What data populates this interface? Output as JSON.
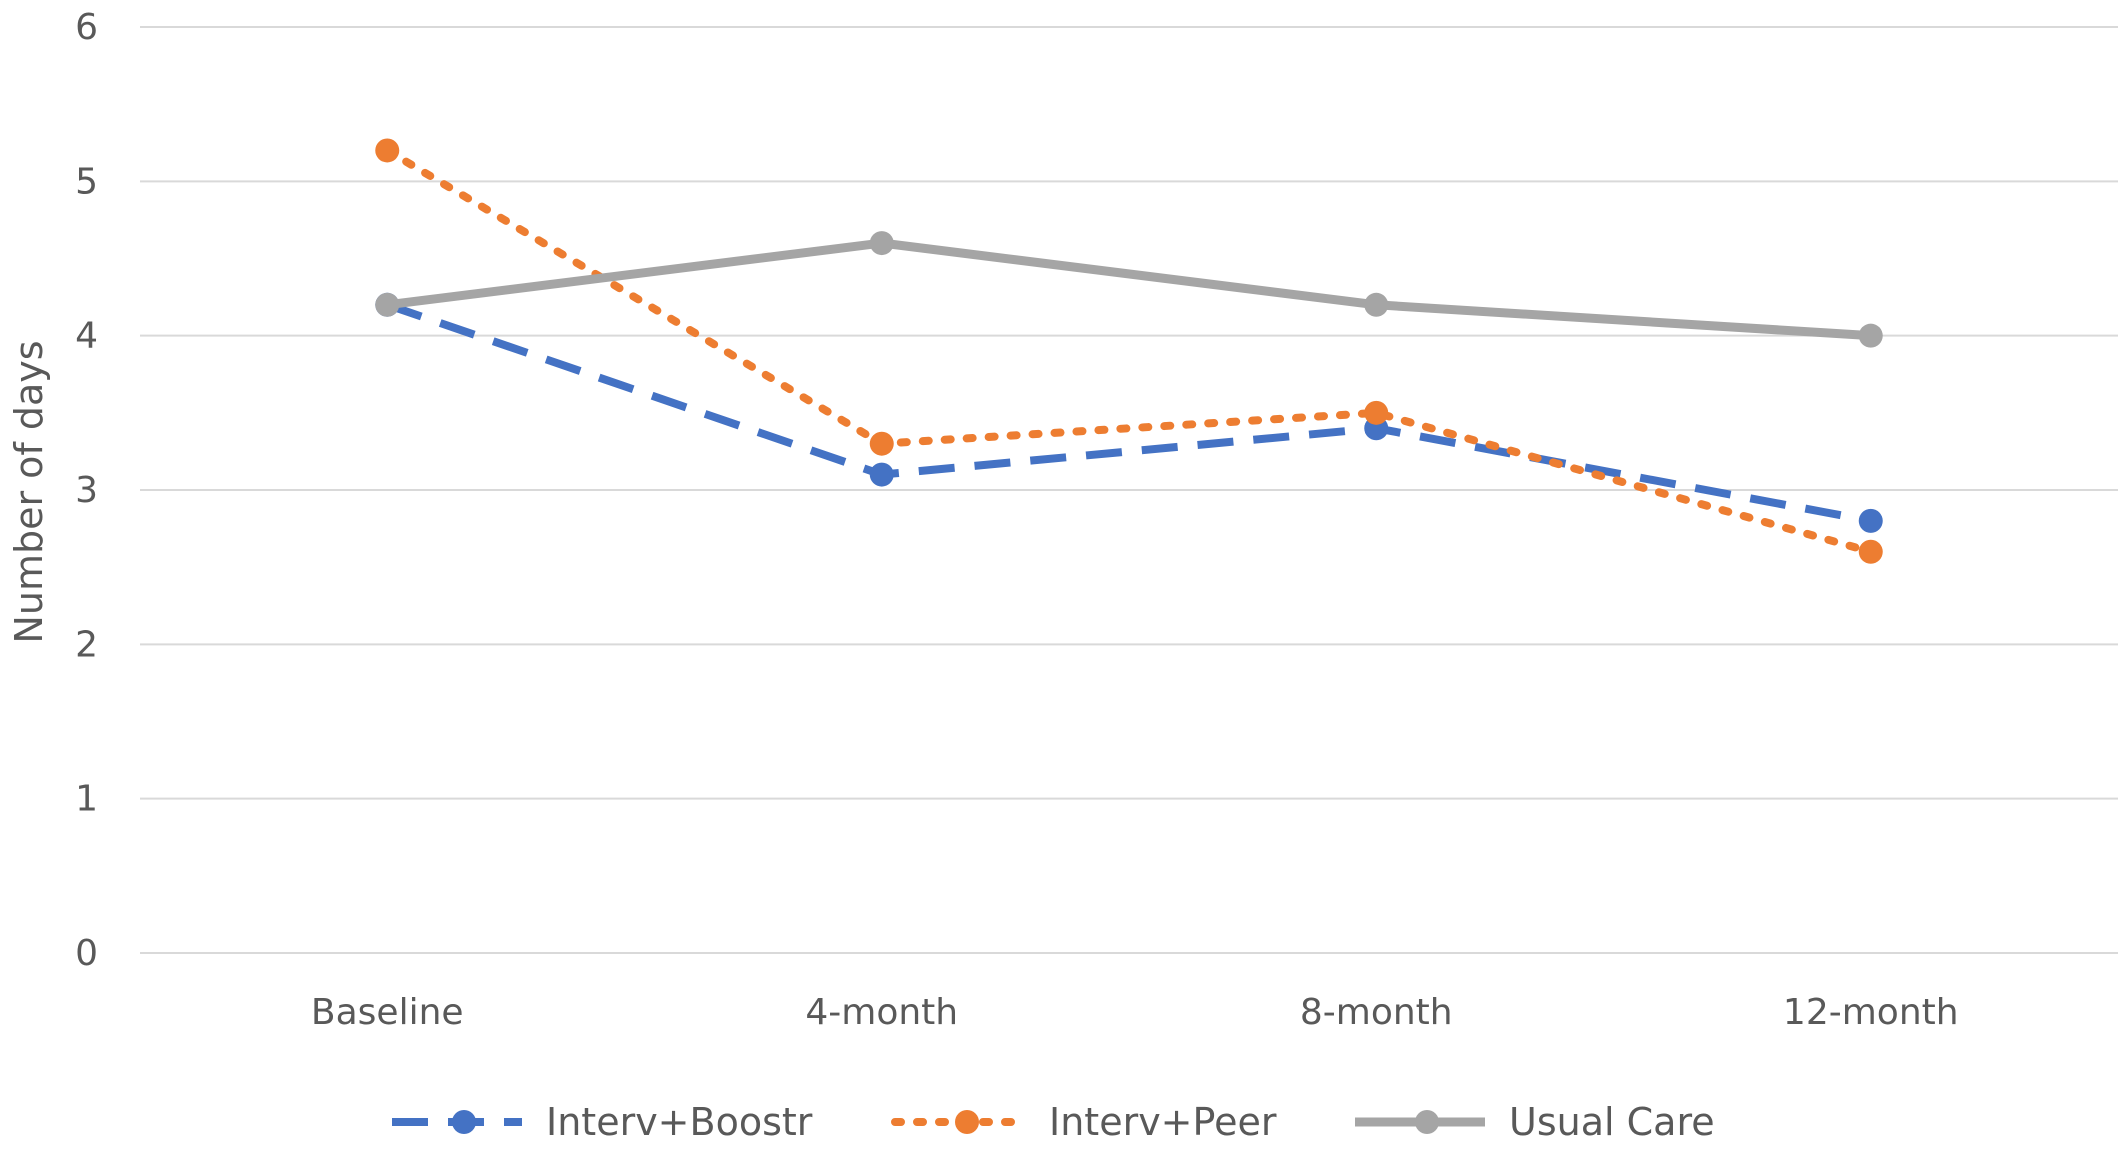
{
  "chart_data": {
    "type": "line",
    "title": "",
    "xlabel": "",
    "ylabel": "Number  of days",
    "categories": [
      "Baseline",
      "4-month",
      "8-month",
      "12-month"
    ],
    "ylim": [
      0,
      6
    ],
    "yticks": [
      0,
      1,
      2,
      3,
      4,
      5,
      6
    ],
    "grid": true,
    "legend_position": "bottom",
    "series": [
      {
        "name": "Interv+Boostr",
        "values": [
          4.2,
          3.1,
          3.4,
          2.8
        ],
        "color": "#4472C4",
        "line_style": "dashed",
        "marker": "circle"
      },
      {
        "name": "Interv+Peer",
        "values": [
          5.2,
          3.3,
          3.5,
          2.6
        ],
        "color": "#ED7D31",
        "line_style": "dotted",
        "marker": "circle"
      },
      {
        "name": "Usual Care",
        "values": [
          4.2,
          4.6,
          4.2,
          4.0
        ],
        "color": "#A5A5A5",
        "line_style": "solid",
        "marker": "circle"
      }
    ],
    "colors": {
      "gridline": "#D9D9D9",
      "text": "#595959"
    }
  }
}
